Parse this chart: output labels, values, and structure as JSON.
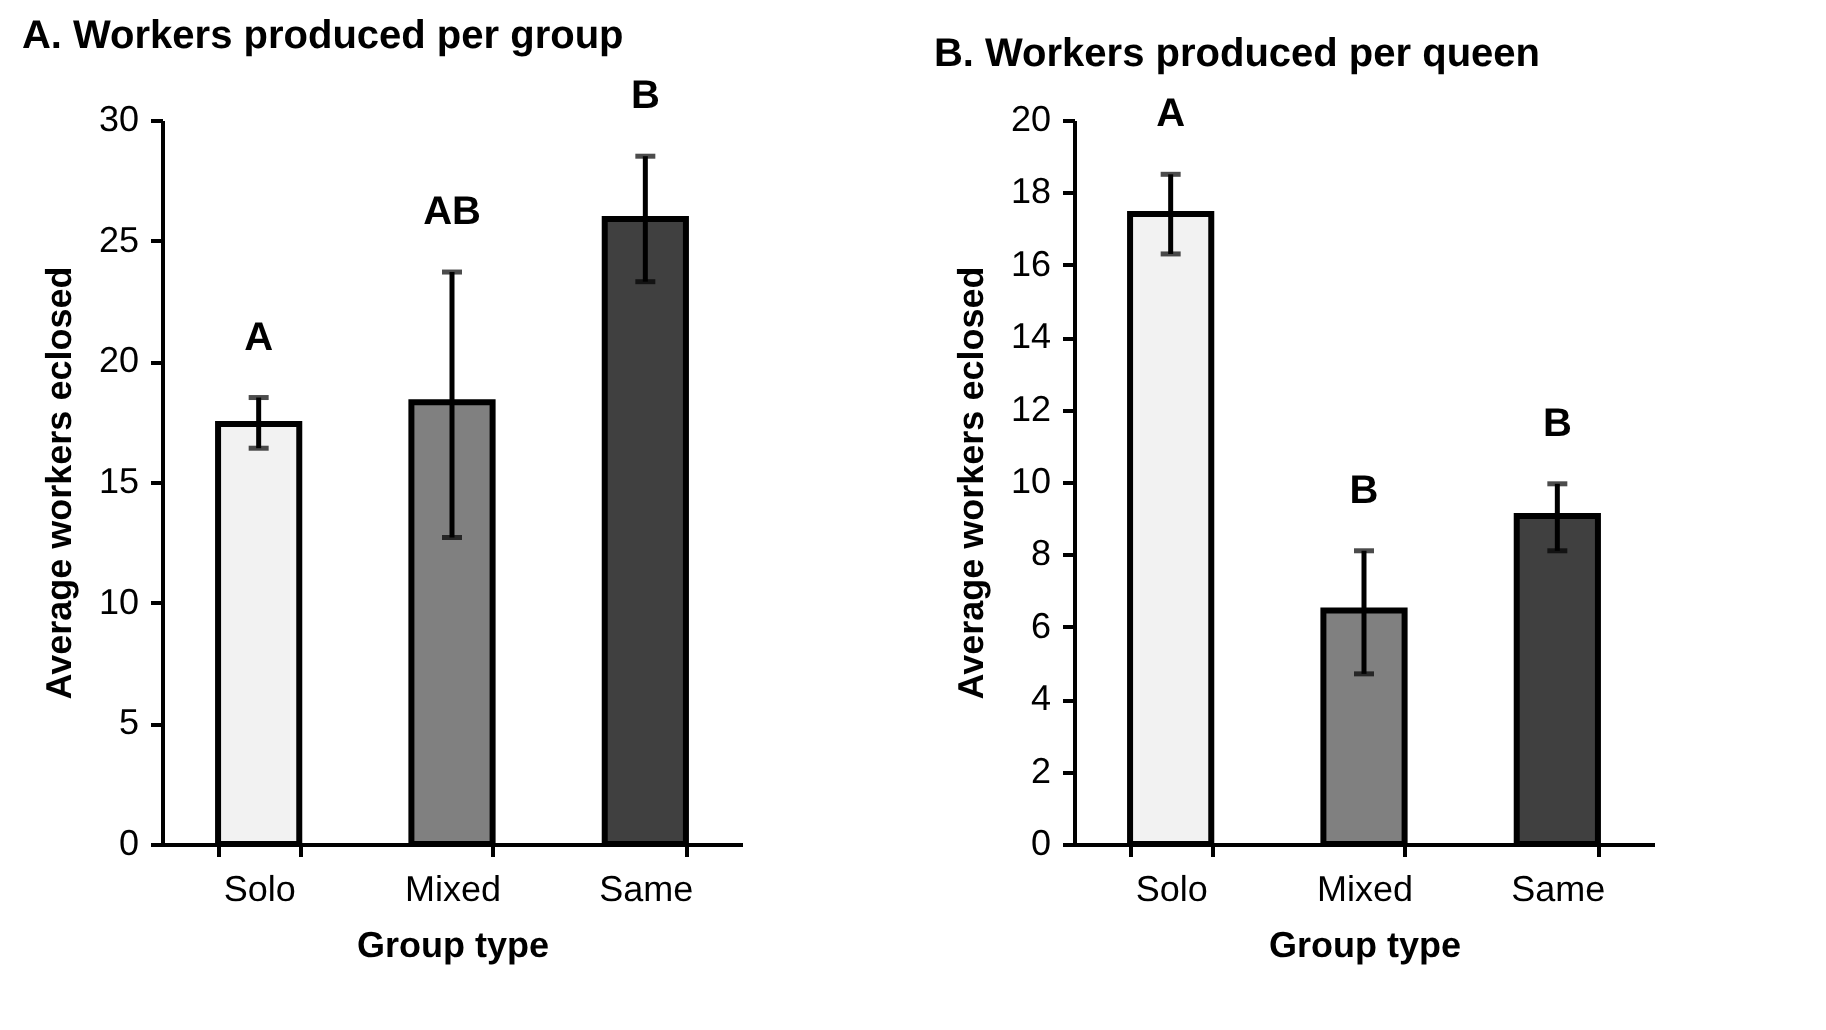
{
  "chart_data": [
    {
      "type": "bar",
      "title": "A. Workers produced per group",
      "xlabel": "Group type",
      "ylabel": "Average workers eclosed",
      "categories": [
        "Solo",
        "Mixed",
        "Same"
      ],
      "values": [
        17.4,
        18.3,
        25.9
      ],
      "colors": [
        "#f2f2f2",
        "#808080",
        "#404040"
      ],
      "errors": [
        [
          16.4,
          18.5
        ],
        [
          12.7,
          23.7
        ],
        [
          23.3,
          28.5
        ]
      ],
      "ylim": [
        0,
        30
      ],
      "yticks": [
        0,
        5,
        10,
        15,
        20,
        25,
        30
      ],
      "grid": false,
      "annotations": [
        {
          "text": "A",
          "x": "Solo",
          "y": 18.5
        },
        {
          "text": "AB",
          "x": "Mixed",
          "y": 23.7
        },
        {
          "text": "B",
          "x": "Same",
          "y": 28.5
        }
      ]
    },
    {
      "type": "bar",
      "title": "B. Workers produced per queen",
      "xlabel": "Group type",
      "ylabel": "Average workers eclosed",
      "categories": [
        "Solo",
        "Mixed",
        "Same"
      ],
      "values": [
        17.4,
        6.45,
        9.06
      ],
      "colors": [
        "#f2f2f2",
        "#808080",
        "#404040"
      ],
      "errors": [
        [
          16.3,
          18.5
        ],
        [
          4.7,
          8.1
        ],
        [
          8.1,
          9.95
        ]
      ],
      "ylim": [
        0,
        20
      ],
      "yticks": [
        0,
        2,
        4,
        6,
        8,
        10,
        12,
        14,
        16,
        18,
        20
      ],
      "grid": false,
      "annotations": [
        {
          "text": "A",
          "x": "Solo",
          "y": 18.5
        },
        {
          "text": "B",
          "x": "Mixed",
          "y": 8.1
        },
        {
          "text": "B",
          "x": "Same",
          "y": 9.95
        }
      ]
    }
  ]
}
